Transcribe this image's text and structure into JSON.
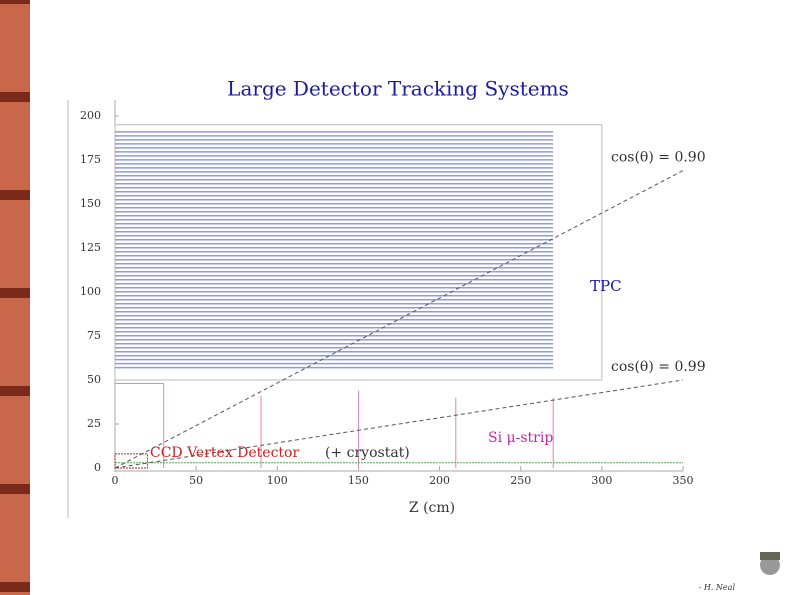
{
  "chart_data": {
    "type": "line",
    "title": "Large Detector Tracking Systems",
    "x_label": "Z (cm)",
    "xlim": [
      0,
      350
    ],
    "ylim": [
      0,
      200
    ],
    "xticks": [
      0,
      50,
      100,
      150,
      200,
      250,
      300,
      350
    ],
    "yticks": [
      0,
      25,
      50,
      75,
      100,
      125,
      150,
      175,
      200
    ],
    "series": [
      {
        "name": "cos(θ) = 0.90",
        "color": "#555555",
        "x": [
          0,
          350
        ],
        "values": [
          0,
          169
        ]
      },
      {
        "name": "cos(θ) = 0.99",
        "color": "#555555",
        "x": [
          0,
          350
        ],
        "values": [
          0,
          50
        ]
      }
    ],
    "tpc": {
      "label": "TPC",
      "color": "#8f9be0",
      "z_max": 270,
      "r_min": 57,
      "r_max": 191,
      "layers": 60,
      "outer_z": 300,
      "outer_r": [
        50,
        195
      ]
    },
    "si_strip": {
      "label": "Si μ-strip",
      "color": "#e080d0",
      "z": [
        30,
        90,
        150,
        210,
        270
      ],
      "r": [
        48,
        41,
        44,
        40,
        40
      ]
    },
    "vertex": {
      "label": "CCD Vertex Detector",
      "color": "#cc2020",
      "z_max": 20,
      "r_max": 8
    },
    "cryostat": {
      "label": "(+ cryostat)",
      "color": "#4caf50",
      "r": 3,
      "z_max": 350
    },
    "footer": "- H. Neal"
  }
}
